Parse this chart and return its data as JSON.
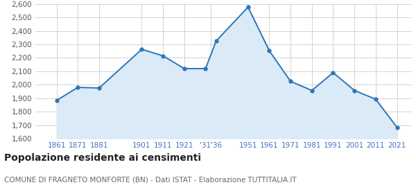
{
  "years": [
    1861,
    1871,
    1881,
    1901,
    1911,
    1921,
    1931,
    1936,
    1951,
    1961,
    1971,
    1981,
    1991,
    2001,
    2011,
    2021
  ],
  "population": [
    1884,
    1981,
    1976,
    2263,
    2215,
    2120,
    2120,
    2325,
    2576,
    2252,
    2025,
    1958,
    2090,
    1958,
    1893,
    1685
  ],
  "tick_positions": [
    1861,
    1871,
    1881,
    1901,
    1911,
    1921,
    1933.5,
    1951,
    1961,
    1971,
    1981,
    1991,
    2001,
    2011,
    2021
  ],
  "tick_labels": [
    "1861",
    "1871",
    "1881",
    "1901",
    "1911",
    "1921",
    "'31'36",
    "1951",
    "1961",
    "1971",
    "1981",
    "1991",
    "2001",
    "2011",
    "2021"
  ],
  "xlim": [
    1851,
    2028
  ],
  "ylim": [
    1600,
    2600
  ],
  "yticks": [
    1600,
    1700,
    1800,
    1900,
    2000,
    2100,
    2200,
    2300,
    2400,
    2500,
    2600
  ],
  "line_color": "#2e75b6",
  "fill_color": "#daeaf7",
  "marker_color": "#2e75b6",
  "grid_color": "#cccccc",
  "bg_color": "#ffffff",
  "title": "Popolazione residente ai censimenti",
  "subtitle": "COMUNE DI FRAGNETO MONFORTE (BN) - Dati ISTAT - Elaborazione TUTTITALIA.IT",
  "title_fontsize": 10,
  "subtitle_fontsize": 7.5,
  "tick_fontsize": 7.5,
  "ytick_fontsize": 7.5
}
